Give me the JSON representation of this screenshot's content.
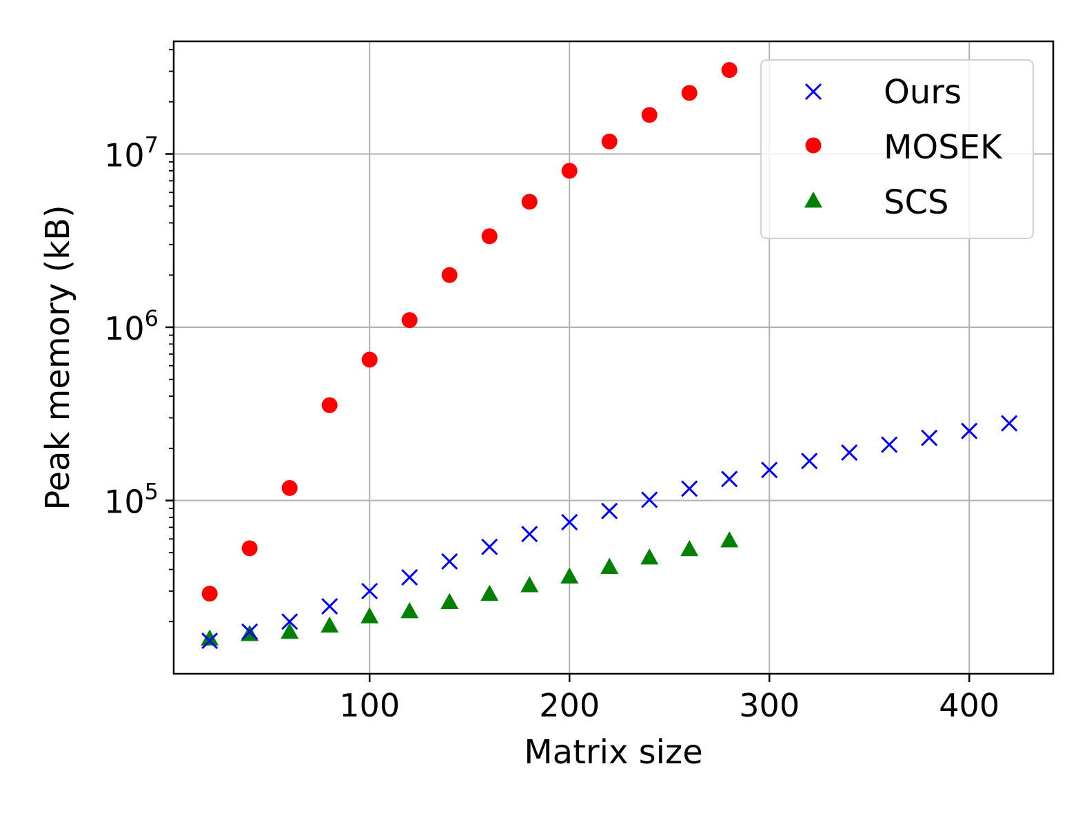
{
  "chart_data": {
    "type": "scatter",
    "title": "",
    "xlabel": "Matrix size",
    "ylabel": "Peak memory (kB)",
    "xlim": [
      2,
      442
    ],
    "ylim_log10": [
      4.0,
      7.65
    ],
    "yscale": "log",
    "grid": true,
    "legend_position": "top-right",
    "x_ticks": [
      {
        "value": 100,
        "label": "100"
      },
      {
        "value": 200,
        "label": "200"
      },
      {
        "value": 300,
        "label": "300"
      },
      {
        "value": 400,
        "label": "400"
      }
    ],
    "y_ticks": [
      {
        "exp": 5,
        "base": "10",
        "sup": "5"
      },
      {
        "exp": 6,
        "base": "10",
        "sup": "6"
      },
      {
        "exp": 7,
        "base": "10",
        "sup": "7"
      }
    ],
    "series": [
      {
        "name": "Ours",
        "marker": "x",
        "color": "#0000ff",
        "x": [
          20,
          40,
          60,
          80,
          100,
          120,
          140,
          160,
          180,
          200,
          220,
          240,
          260,
          280,
          300,
          320,
          340,
          360,
          380,
          400,
          420
        ],
        "y": [
          15500,
          17500,
          20000,
          24500,
          30000,
          36000,
          44500,
          54000,
          64000,
          75000,
          87000,
          101000,
          117000,
          133000,
          150000,
          169000,
          189000,
          210000,
          230000,
          252000,
          279000
        ]
      },
      {
        "name": "MOSEK",
        "marker": "circle",
        "color": "#ff0000",
        "x": [
          20,
          40,
          60,
          80,
          100,
          120,
          140,
          160,
          180,
          200,
          220,
          240,
          260,
          280
        ],
        "y": [
          29000,
          53000,
          118000,
          355000,
          650000,
          1100000,
          2000000,
          3350000,
          5300000,
          8000000,
          11800000,
          16800000,
          22500000,
          30500000
        ]
      },
      {
        "name": "SCS",
        "marker": "triangle",
        "color": "#008000",
        "x": [
          20,
          40,
          60,
          80,
          100,
          120,
          140,
          160,
          180,
          200,
          220,
          240,
          260,
          280
        ],
        "y": [
          16000,
          17000,
          17500,
          19000,
          21500,
          23000,
          26000,
          29000,
          32500,
          36500,
          41500,
          47000,
          52500,
          59000
        ]
      }
    ]
  }
}
